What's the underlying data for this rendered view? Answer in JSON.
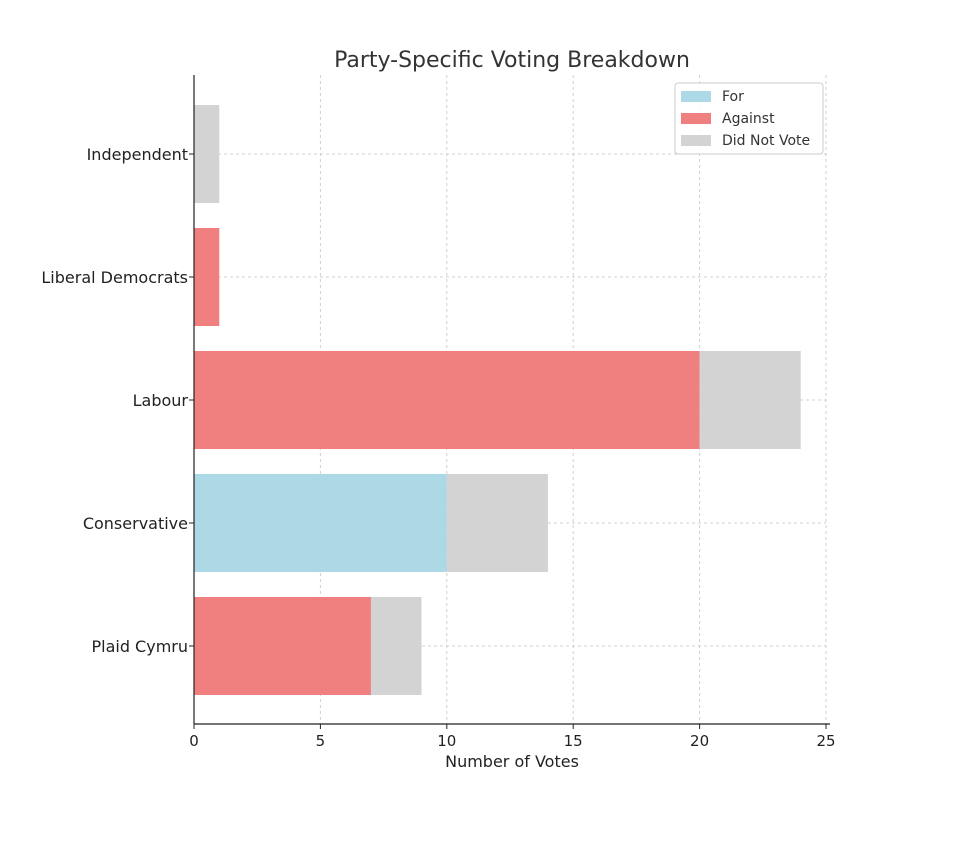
{
  "chart_data": {
    "type": "bar",
    "orientation": "horizontal",
    "stacked": true,
    "title": "Party-Specific Voting Breakdown",
    "xlabel": "Number of Votes",
    "ylabel": "",
    "xlim": [
      0,
      25
    ],
    "x_ticks": [
      0,
      5,
      10,
      15,
      20,
      25
    ],
    "grid": true,
    "legend_position": "top-right",
    "categories": [
      "Plaid Cymru",
      "Conservative",
      "Labour",
      "Liberal Democrats",
      "Independent"
    ],
    "series": [
      {
        "name": "For",
        "color": "#add8e6",
        "values": [
          0,
          10,
          0,
          0,
          0
        ]
      },
      {
        "name": "Against",
        "color": "#f08080",
        "values": [
          7,
          0,
          20,
          1,
          0
        ]
      },
      {
        "name": "Did Not Vote",
        "color": "#d3d3d3",
        "values": [
          2,
          4,
          4,
          0,
          1
        ]
      }
    ]
  }
}
